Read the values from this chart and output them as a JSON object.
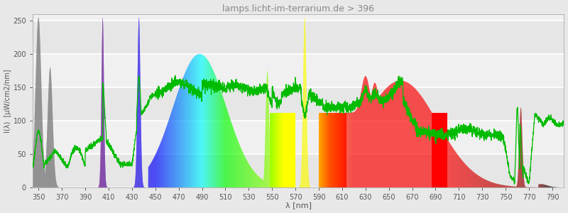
{
  "title": "lamps.licht-im-terrarium.de > 396",
  "xlabel": "λ [nm]",
  "ylabel": "I(λ)  [μW/cm2/nm]",
  "xlim": [
    345,
    800
  ],
  "ylim": [
    0,
    260
  ],
  "xticks": [
    350,
    370,
    390,
    410,
    430,
    450,
    470,
    490,
    510,
    530,
    550,
    570,
    590,
    610,
    630,
    650,
    670,
    690,
    710,
    730,
    750,
    770,
    790
  ],
  "yticks": [
    0,
    50,
    100,
    150,
    200,
    250
  ],
  "background_color": "#e8e8e8",
  "plot_bg_color": "#f0f0f0",
  "grid_color": "#ffffff",
  "title_color": "#888888",
  "title_fontsize": 9,
  "axis_label_color": "#555555",
  "tick_label_color": "#555555",
  "green_line_color": "#00bb00",
  "fig_width": 8.0,
  "fig_height": 3.0,
  "fig_dpi": 100
}
